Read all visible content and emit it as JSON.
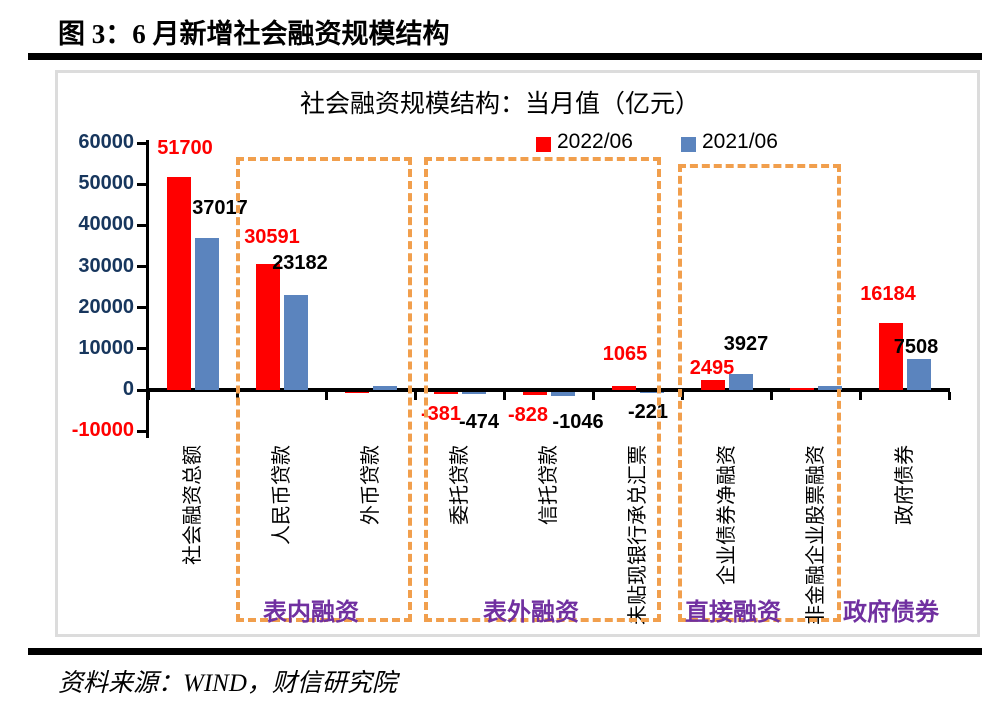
{
  "page": {
    "figure_title": "图 3：6 月新增社会融资规模结构",
    "source_note": "资料来源：WIND，财信研究院"
  },
  "chart_data": {
    "type": "bar",
    "title": "社会融资规模结构：当月值（亿元）",
    "categories": [
      "社会融资总额",
      "人民币贷款",
      "外币贷款",
      "委托贷款",
      "信托贷款",
      "未贴现银行承兑汇票",
      "企业债券净融资",
      "非金融企业股票融资",
      "政府债券"
    ],
    "series": [
      {
        "name": "2022/06",
        "color": "#FF0000",
        "label_color": "#FF0000",
        "values": [
          51700,
          30591,
          -300,
          -381,
          -828,
          1065,
          2495,
          600,
          16184
        ],
        "data_labels": [
          "51700",
          "30591",
          "",
          "-381",
          "-828",
          "1065",
          "2495",
          "",
          "16184"
        ]
      },
      {
        "name": "2021/06",
        "color": "#5B84BE",
        "label_color": "#000000",
        "values": [
          37017,
          23182,
          900,
          -474,
          -1046,
          -221,
          3927,
          950,
          7508
        ],
        "data_labels": [
          "37017",
          "23182",
          "",
          "-474",
          "-1046",
          "-221",
          "3927",
          "",
          "7508"
        ]
      }
    ],
    "ylim": [
      -10000,
      60000
    ],
    "ytick_interval": 10000,
    "yticks": [
      {
        "label": "60000",
        "value": 60000,
        "color": "#17365D"
      },
      {
        "label": "50000",
        "value": 50000,
        "color": "#17365D"
      },
      {
        "label": "40000",
        "value": 40000,
        "color": "#17365D"
      },
      {
        "label": "30000",
        "value": 30000,
        "color": "#17365D"
      },
      {
        "label": "20000",
        "value": 20000,
        "color": "#17365D"
      },
      {
        "label": "10000",
        "value": 10000,
        "color": "#17365D"
      },
      {
        "label": "0",
        "value": 0,
        "color": "#17365D"
      },
      {
        "label": "-10000",
        "value": -10000,
        "color": "#FF0000"
      }
    ],
    "legend_position": "top",
    "grid": false,
    "groups": [
      {
        "label": "表内融资",
        "categories": [
          1,
          2
        ]
      },
      {
        "label": "表外融资",
        "categories": [
          3,
          4,
          5
        ]
      },
      {
        "label": "直接融资",
        "categories": [
          6,
          7
        ]
      },
      {
        "label": "政府债券",
        "categories": [
          8
        ]
      }
    ],
    "colors": {
      "group_box_dash": "#F19F4D",
      "group_label": "#7030A0",
      "axis": "#000000"
    }
  }
}
